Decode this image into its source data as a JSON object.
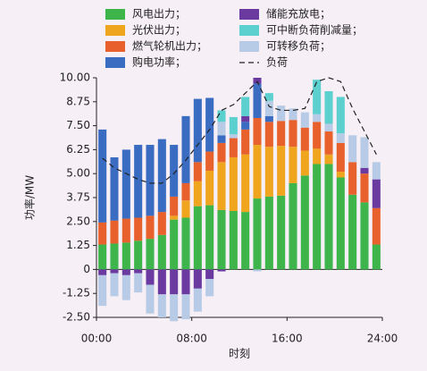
{
  "chart_data": {
    "type": "bar",
    "stacked": true,
    "x_label": "时刻",
    "y_label": "功率/MW",
    "categories": [
      null,
      null,
      null,
      null,
      null,
      null,
      null,
      null,
      null,
      null,
      null,
      null,
      null,
      null,
      null,
      null,
      null,
      null,
      null,
      null,
      null,
      null,
      null,
      null
    ],
    "xlim": [
      0,
      24
    ],
    "xticks": [
      {
        "value": 0,
        "label": "00:00"
      },
      {
        "value": 8,
        "label": "08:00"
      },
      {
        "value": 16,
        "label": "16:00"
      },
      {
        "value": 24,
        "label": "24:00"
      }
    ],
    "ylim": [
      -2.5,
      10
    ],
    "yticks": [
      {
        "value": -2.5,
        "label": "-2.50"
      },
      -1.25,
      0,
      1.25,
      {
        "value": 2.5,
        "label": "2.50"
      },
      3.75,
      {
        "value": 5,
        "label": "5.00"
      },
      6.25,
      {
        "value": 7.5,
        "label": "7.50"
      },
      8.75,
      {
        "value": 10,
        "label": "10.00"
      }
    ],
    "series": [
      {
        "name": "风电出力；",
        "color": "#3db54a",
        "values": [
          1.3,
          1.35,
          1.4,
          1.5,
          1.6,
          1.8,
          2.6,
          2.7,
          3.3,
          3.35,
          3.1,
          3.05,
          3.0,
          3.7,
          3.8,
          3.85,
          4.5,
          4.9,
          5.5,
          5.5,
          4.8,
          3.9,
          3.5,
          1.3
        ]
      },
      {
        "name": "光伏出力；",
        "color": "#f0a51e",
        "values": [
          0,
          0,
          0,
          0,
          0,
          0,
          0.2,
          0.9,
          1.3,
          1.8,
          2.5,
          2.8,
          3.0,
          2.8,
          2.6,
          2.6,
          1.9,
          1.3,
          0.8,
          0.5,
          0.3,
          0,
          0,
          0
        ]
      },
      {
        "name": "燃气轮机出力；",
        "color": "#e8612c",
        "values": [
          1.15,
          1.2,
          1.25,
          1.2,
          1.2,
          1.2,
          1.0,
          0.9,
          1.0,
          1.0,
          1.0,
          1.0,
          1.3,
          1.4,
          1.3,
          1.3,
          1.4,
          1.2,
          1.4,
          1.2,
          1.5,
          1.7,
          1.5,
          1.9
        ]
      },
      {
        "name": "购电功率；",
        "color": "#3a6cc1",
        "values": [
          4.85,
          3.3,
          3.6,
          3.8,
          3.7,
          3.8,
          2.7,
          3.5,
          3.3,
          2.8,
          0.4,
          0,
          0.4,
          1.8,
          0.3,
          0,
          0,
          0,
          0,
          0,
          0,
          0,
          0,
          0
        ]
      },
      {
        "name": "储能充放电；",
        "color": "#6a3aa0",
        "values": [
          -0.3,
          -0.2,
          -0.3,
          -0.2,
          -0.8,
          -1.3,
          -1.3,
          -1.3,
          -1.0,
          -0.5,
          -0.1,
          0,
          0.3,
          0.3,
          0,
          0,
          0,
          0,
          0,
          0,
          0,
          0,
          0.3,
          1.5
        ]
      },
      {
        "name": "可转移负荷；",
        "color": "#b7cbe6",
        "values": [
          -1.6,
          -1.2,
          -1.3,
          -1.0,
          -1.5,
          -1.2,
          -1.4,
          -1.3,
          -1.2,
          -0.9,
          0.7,
          0.2,
          0,
          -0.1,
          0.8,
          0.8,
          0.6,
          0.8,
          0.4,
          0.4,
          0.5,
          1.4,
          1.6,
          0.9
        ]
      },
      {
        "name": "可中断负荷削减量；",
        "color": "#5ccfcf",
        "values": [
          0,
          0,
          0,
          0,
          0,
          0,
          0,
          0,
          0,
          0,
          0.6,
          0.9,
          1.0,
          0,
          0.4,
          0,
          0,
          0,
          1.8,
          1.7,
          1.9,
          0,
          0,
          0
        ]
      }
    ],
    "line": {
      "name": "负荷",
      "color": "#222222",
      "values": [
        5.8,
        5.3,
        5.0,
        4.7,
        4.5,
        4.5,
        5.0,
        5.7,
        6.5,
        7.3,
        8.3,
        8.6,
        9.2,
        9.8,
        8.5,
        8.3,
        8.3,
        8.4,
        9.8,
        10.0,
        9.8,
        8.4,
        7.2,
        6.0
      ]
    },
    "legend_order": [
      0,
      1,
      2,
      3,
      4,
      6,
      5
    ]
  }
}
